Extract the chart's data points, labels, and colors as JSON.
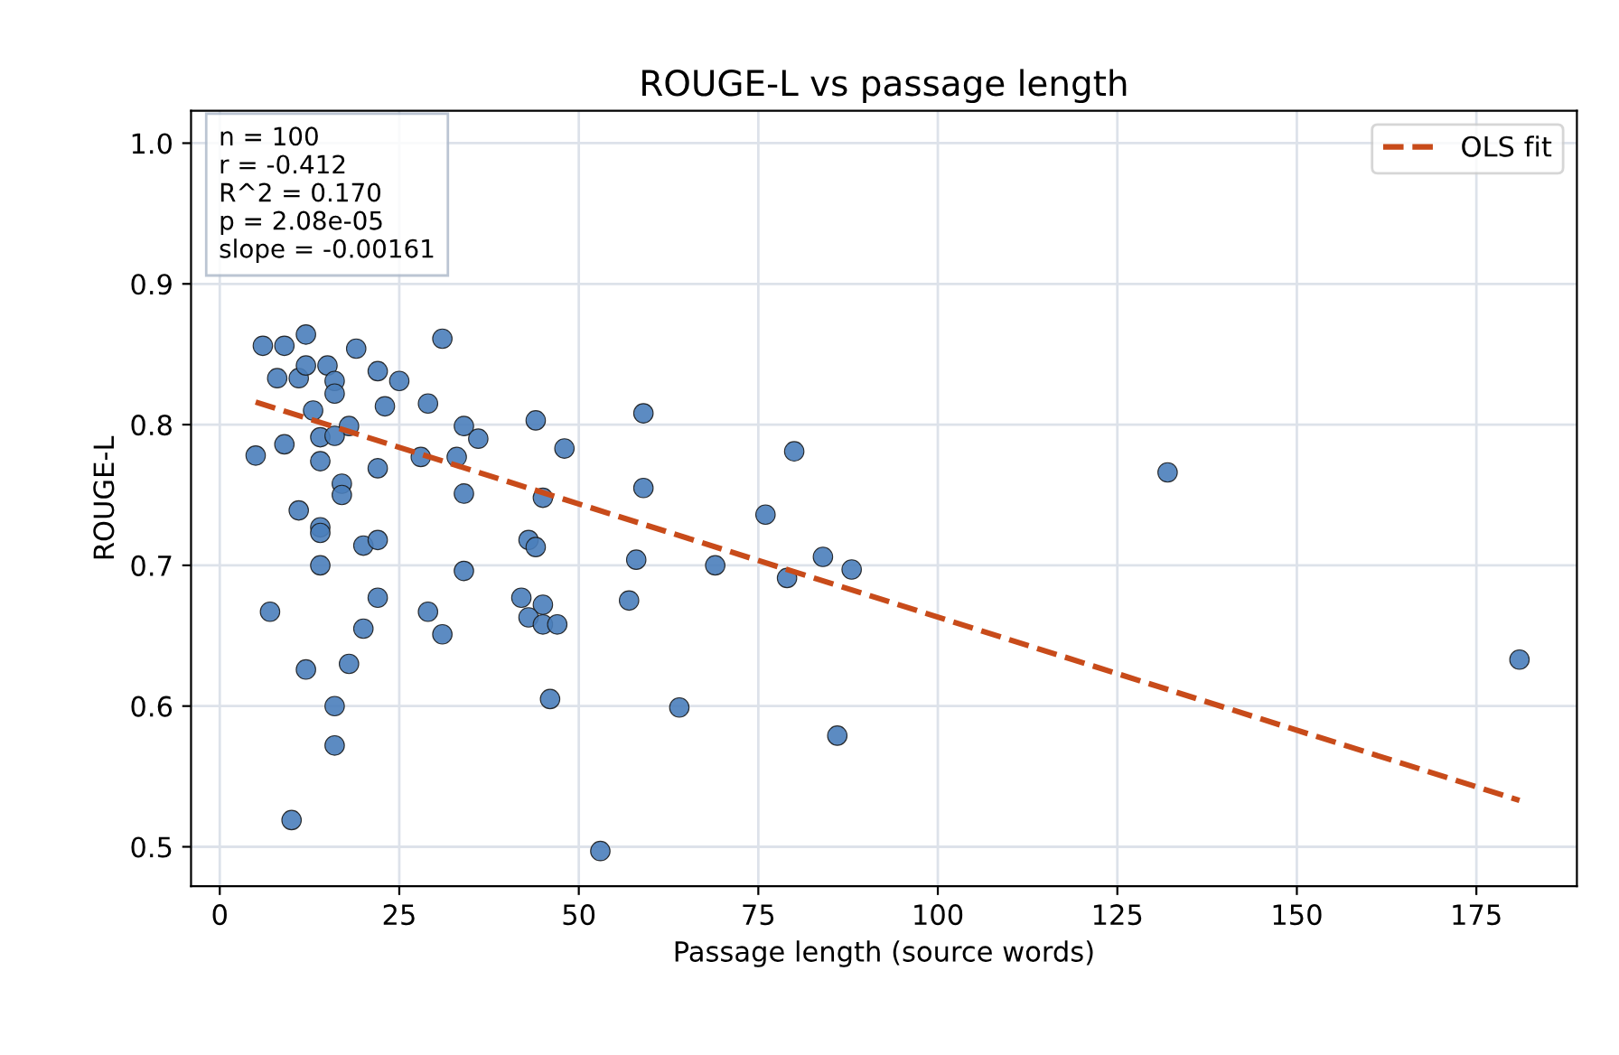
{
  "chart_data": {
    "type": "scatter",
    "title": "ROUGE-L vs passage length",
    "xlabel": "Passage length (source words)",
    "ylabel": "ROUGE-L",
    "xlim": [
      -4,
      189
    ],
    "ylim": [
      0.472,
      1.023
    ],
    "xticks": [
      0,
      25,
      50,
      75,
      100,
      125,
      150,
      175
    ],
    "yticks": [
      0.5,
      0.6,
      0.7,
      0.8,
      0.9,
      {
        "value": 1,
        "label": "1.0"
      }
    ],
    "grid": true,
    "legend": "top right",
    "annotations": [
      "n = 100\nr = -0.412\nR^2 = 0.170\np = 2.08e-05\nslope = -0.00161"
    ],
    "series": [
      {
        "marker": "circle",
        "color": "#4a7ebb",
        "x": [
          12,
          6,
          9,
          19,
          31,
          8,
          11,
          12,
          15,
          16,
          22,
          25,
          16,
          29,
          13,
          23,
          18,
          34,
          14,
          16,
          36,
          9,
          14,
          17,
          17,
          22,
          5,
          28,
          33,
          34,
          11,
          14,
          14,
          20,
          22,
          14,
          34,
          22,
          7,
          29,
          31,
          20,
          18,
          12,
          16,
          16,
          10,
          53,
          44,
          59,
          48,
          80,
          132,
          59,
          45,
          76,
          43,
          44,
          58,
          69,
          84,
          88,
          79,
          42,
          57,
          45,
          43,
          45,
          47,
          46,
          64,
          86,
          181
        ],
        "values": [
          0.864,
          0.856,
          0.856,
          0.854,
          0.861,
          0.833,
          0.833,
          0.842,
          0.842,
          0.831,
          0.838,
          0.831,
          0.822,
          0.815,
          0.81,
          0.813,
          0.799,
          0.799,
          0.791,
          0.792,
          0.79,
          0.786,
          0.774,
          0.758,
          0.75,
          0.769,
          0.778,
          0.777,
          0.777,
          0.751,
          0.739,
          0.727,
          0.723,
          0.714,
          0.718,
          0.7,
          0.696,
          0.677,
          0.667,
          0.667,
          0.651,
          0.655,
          0.63,
          0.626,
          0.6,
          0.572,
          0.519,
          0.497,
          0.803,
          0.808,
          0.783,
          0.781,
          0.766,
          0.755,
          0.748,
          0.736,
          0.718,
          0.713,
          0.704,
          0.7,
          0.706,
          0.697,
          0.691,
          0.677,
          0.675,
          0.672,
          0.663,
          0.658,
          0.658,
          0.605,
          0.599,
          0.579,
          0.633
        ]
      },
      {
        "type": "line",
        "name": "OLS fit",
        "color": "#c84b1a",
        "line_style": "dashed",
        "x": [
          5,
          181
        ],
        "values": [
          0.816,
          0.533
        ]
      }
    ]
  }
}
